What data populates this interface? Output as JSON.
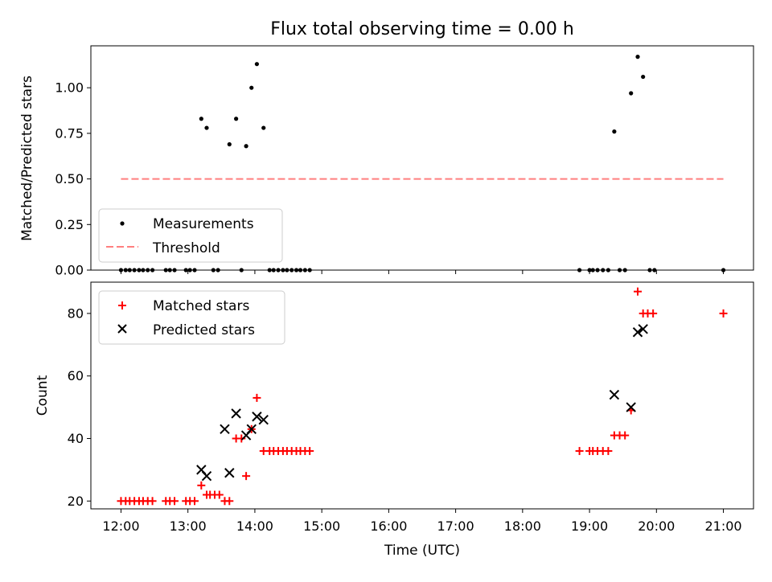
{
  "chart_data": [
    {
      "type": "scatter",
      "title": "Flux total observing time = 0.00 h",
      "xlabel": "",
      "ylabel": "Matched/Predicted stars",
      "xlim": [
        11.55,
        21.45
      ],
      "ylim": [
        0.0,
        1.23
      ],
      "yticks": [
        "0.00",
        "0.25",
        "0.50",
        "0.75",
        "1.00"
      ],
      "grid": false,
      "legend": {
        "placement": "lower-left"
      },
      "series": [
        {
          "name": "Measurements",
          "marker": "dot",
          "color": "#000000",
          "x": [
            12.0,
            12.07,
            12.13,
            12.2,
            12.27,
            12.33,
            12.4,
            12.47,
            12.67,
            12.73,
            12.8,
            12.97,
            13.03,
            13.1,
            13.2,
            13.28,
            13.38,
            13.45,
            13.62,
            13.72,
            13.8,
            13.87,
            13.95,
            14.03,
            14.13,
            14.22,
            14.28,
            14.35,
            14.42,
            14.48,
            14.55,
            14.62,
            14.68,
            14.75,
            14.82,
            18.85,
            19.0,
            19.05,
            19.12,
            19.2,
            19.28,
            19.37,
            19.45,
            19.53,
            19.62,
            19.72,
            19.8,
            19.9,
            19.97,
            21.0
          ],
          "y": [
            0.0,
            0.0,
            0.0,
            0.0,
            0.0,
            0.0,
            0.0,
            0.0,
            0.0,
            0.0,
            0.0,
            0.0,
            0.0,
            0.0,
            0.83,
            0.78,
            0.0,
            0.0,
            0.69,
            0.83,
            0.0,
            0.68,
            1.0,
            1.13,
            0.78,
            0.0,
            0.0,
            0.0,
            0.0,
            0.0,
            0.0,
            0.0,
            0.0,
            0.0,
            0.0,
            0.0,
            0.0,
            0.0,
            0.0,
            0.0,
            0.0,
            0.76,
            0.0,
            0.0,
            0.97,
            1.17,
            1.06,
            0.0,
            0.0,
            0.0
          ]
        },
        {
          "name": "Threshold",
          "marker": "dashed-line",
          "color": "#ff7f7f",
          "x": [
            12.0,
            21.0
          ],
          "y": [
            0.5,
            0.5
          ]
        }
      ]
    },
    {
      "type": "scatter",
      "title": "",
      "xlabel": "Time (UTC)",
      "ylabel": "Count",
      "xlim": [
        11.55,
        21.45
      ],
      "ylim": [
        17.5,
        90.0
      ],
      "xticks": [
        "12:00",
        "13:00",
        "14:00",
        "15:00",
        "16:00",
        "17:00",
        "18:00",
        "19:00",
        "20:00",
        "21:00"
      ],
      "yticks": [
        "20",
        "40",
        "60",
        "80"
      ],
      "grid": false,
      "legend": {
        "placement": "upper-left"
      },
      "series": [
        {
          "name": "Matched stars",
          "marker": "plus",
          "color": "#ff0000",
          "x": [
            12.0,
            12.07,
            12.13,
            12.2,
            12.27,
            12.33,
            12.4,
            12.47,
            12.67,
            12.73,
            12.8,
            12.97,
            13.03,
            13.1,
            13.2,
            13.28,
            13.33,
            13.4,
            13.47,
            13.55,
            13.62,
            13.72,
            13.8,
            13.87,
            13.95,
            14.03,
            14.13,
            14.22,
            14.28,
            14.35,
            14.42,
            14.48,
            14.55,
            14.62,
            14.68,
            14.75,
            14.82,
            18.85,
            19.0,
            19.05,
            19.12,
            19.2,
            19.28,
            19.37,
            19.45,
            19.53,
            19.62,
            19.72,
            19.8,
            19.87,
            19.95,
            21.0
          ],
          "y": [
            20,
            20,
            20,
            20,
            20,
            20,
            20,
            20,
            20,
            20,
            20,
            20,
            20,
            20,
            25,
            22,
            22,
            22,
            22,
            20,
            20,
            40,
            40,
            28,
            43,
            53,
            36,
            36,
            36,
            36,
            36,
            36,
            36,
            36,
            36,
            36,
            36,
            36,
            36,
            36,
            36,
            36,
            36,
            41,
            41,
            41,
            49,
            87,
            80,
            80,
            80,
            80
          ]
        },
        {
          "name": "Predicted stars",
          "marker": "x",
          "color": "#000000",
          "x": [
            13.2,
            13.28,
            13.55,
            13.62,
            13.72,
            13.87,
            13.95,
            14.03,
            14.13,
            19.37,
            19.62,
            19.72,
            19.8
          ],
          "y": [
            30,
            28,
            43,
            29,
            48,
            41,
            43,
            47,
            46,
            54,
            50,
            74,
            75
          ]
        }
      ]
    }
  ]
}
